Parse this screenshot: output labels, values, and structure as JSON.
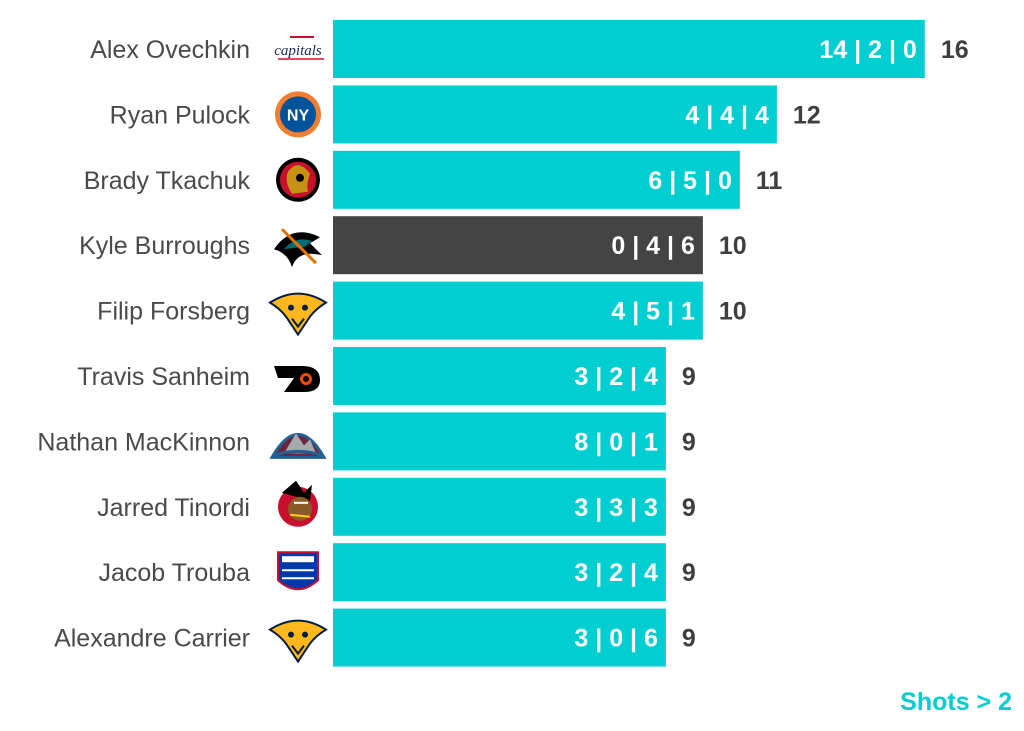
{
  "colors": {
    "bar": "#00CED1",
    "highlight": "#444444",
    "player_text": "#4a4a4a",
    "total_text": "#3f3f3f",
    "note": "#00CED1"
  },
  "footer_note": "Shots > 2",
  "chart_data": {
    "type": "bar",
    "orientation": "horizontal",
    "xlim": [
      0,
      17.6
    ],
    "grid": false,
    "categories": [
      "Alex Ovechkin",
      "Ryan Pulock",
      "Brady Tkachuk",
      "Kyle Burroughs",
      "Filip Forsberg",
      "Travis Sanheim",
      "Nathan MacKinnon",
      "Jarred Tinordi",
      "Jacob Trouba",
      "Alexandre Carrier"
    ],
    "values": [
      16,
      12,
      11,
      10,
      10,
      9,
      9,
      9,
      9,
      9
    ],
    "bar_labels": [
      "14 | 2 | 0",
      "4 | 4 | 4",
      "6 | 5 | 0",
      "0 | 4 | 6",
      "4 | 5 | 1",
      "3 | 2 | 4",
      "8 | 0 | 1",
      "3 | 3 | 3",
      "3 | 2 | 4",
      "3 | 0 | 6"
    ],
    "highlighted": [
      "Kyle Burroughs"
    ],
    "team_logos": [
      "capitals-logo",
      "islanders-logo",
      "senators-logo",
      "sharks-logo",
      "predators-logo",
      "flyers-logo",
      "avalanche-logo",
      "blackhawks-logo",
      "rangers-logo",
      "predators-logo"
    ]
  }
}
